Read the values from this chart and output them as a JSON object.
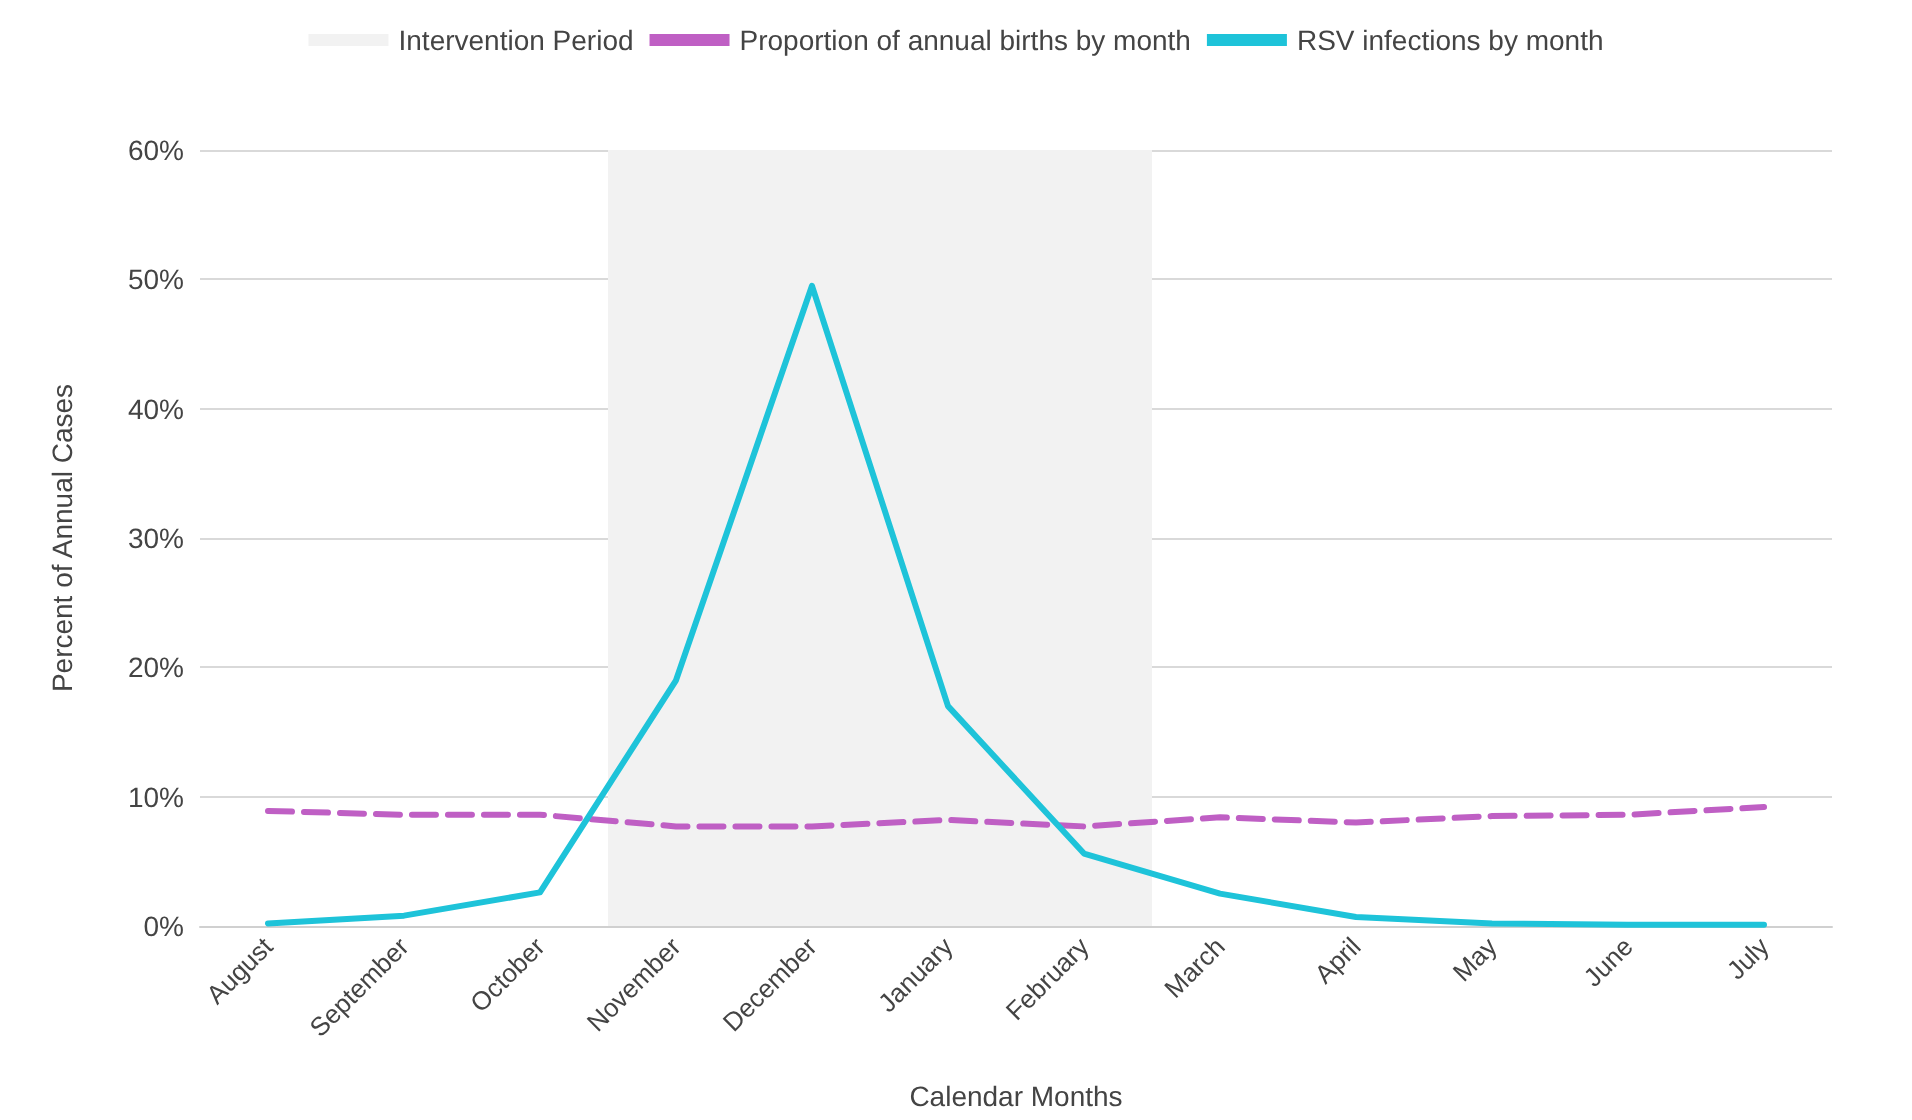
{
  "chart_data": {
    "type": "line",
    "xlabel": "Calendar Months",
    "ylabel": "Percent of Annual Cases",
    "categories": [
      "August",
      "September",
      "October",
      "November",
      "December",
      "January",
      "February",
      "March",
      "April",
      "May",
      "June",
      "July"
    ],
    "series": [
      {
        "name": "Proportion of annual births by month",
        "color": "#bf5fc4",
        "line_style": "dashed",
        "values": [
          8.9,
          8.6,
          8.6,
          7.7,
          7.7,
          8.2,
          7.7,
          8.4,
          8.0,
          8.5,
          8.6,
          9.2
        ]
      },
      {
        "name": "RSV infections by month",
        "color": "#1ec3d9",
        "line_style": "solid",
        "values": [
          0.2,
          0.8,
          2.6,
          19,
          49.5,
          17,
          5.6,
          2.5,
          0.7,
          0.2,
          0.1,
          0.1
        ]
      }
    ],
    "ylim": [
      0,
      60
    ],
    "yticks": [
      {
        "value": 0,
        "label": "0%"
      },
      {
        "value": 10,
        "label": "10%"
      },
      {
        "value": 20,
        "label": "20%"
      },
      {
        "value": 30,
        "label": "30%"
      },
      {
        "value": 40,
        "label": "40%"
      },
      {
        "value": 50,
        "label": "50%"
      },
      {
        "value": 60,
        "label": "60%"
      }
    ],
    "bands": [
      {
        "axis": "x",
        "from": "November",
        "to": "February",
        "label": "Intervention Period",
        "color": "#f2f2f2"
      }
    ],
    "grid": "y",
    "legend": "top",
    "marker": "none"
  }
}
